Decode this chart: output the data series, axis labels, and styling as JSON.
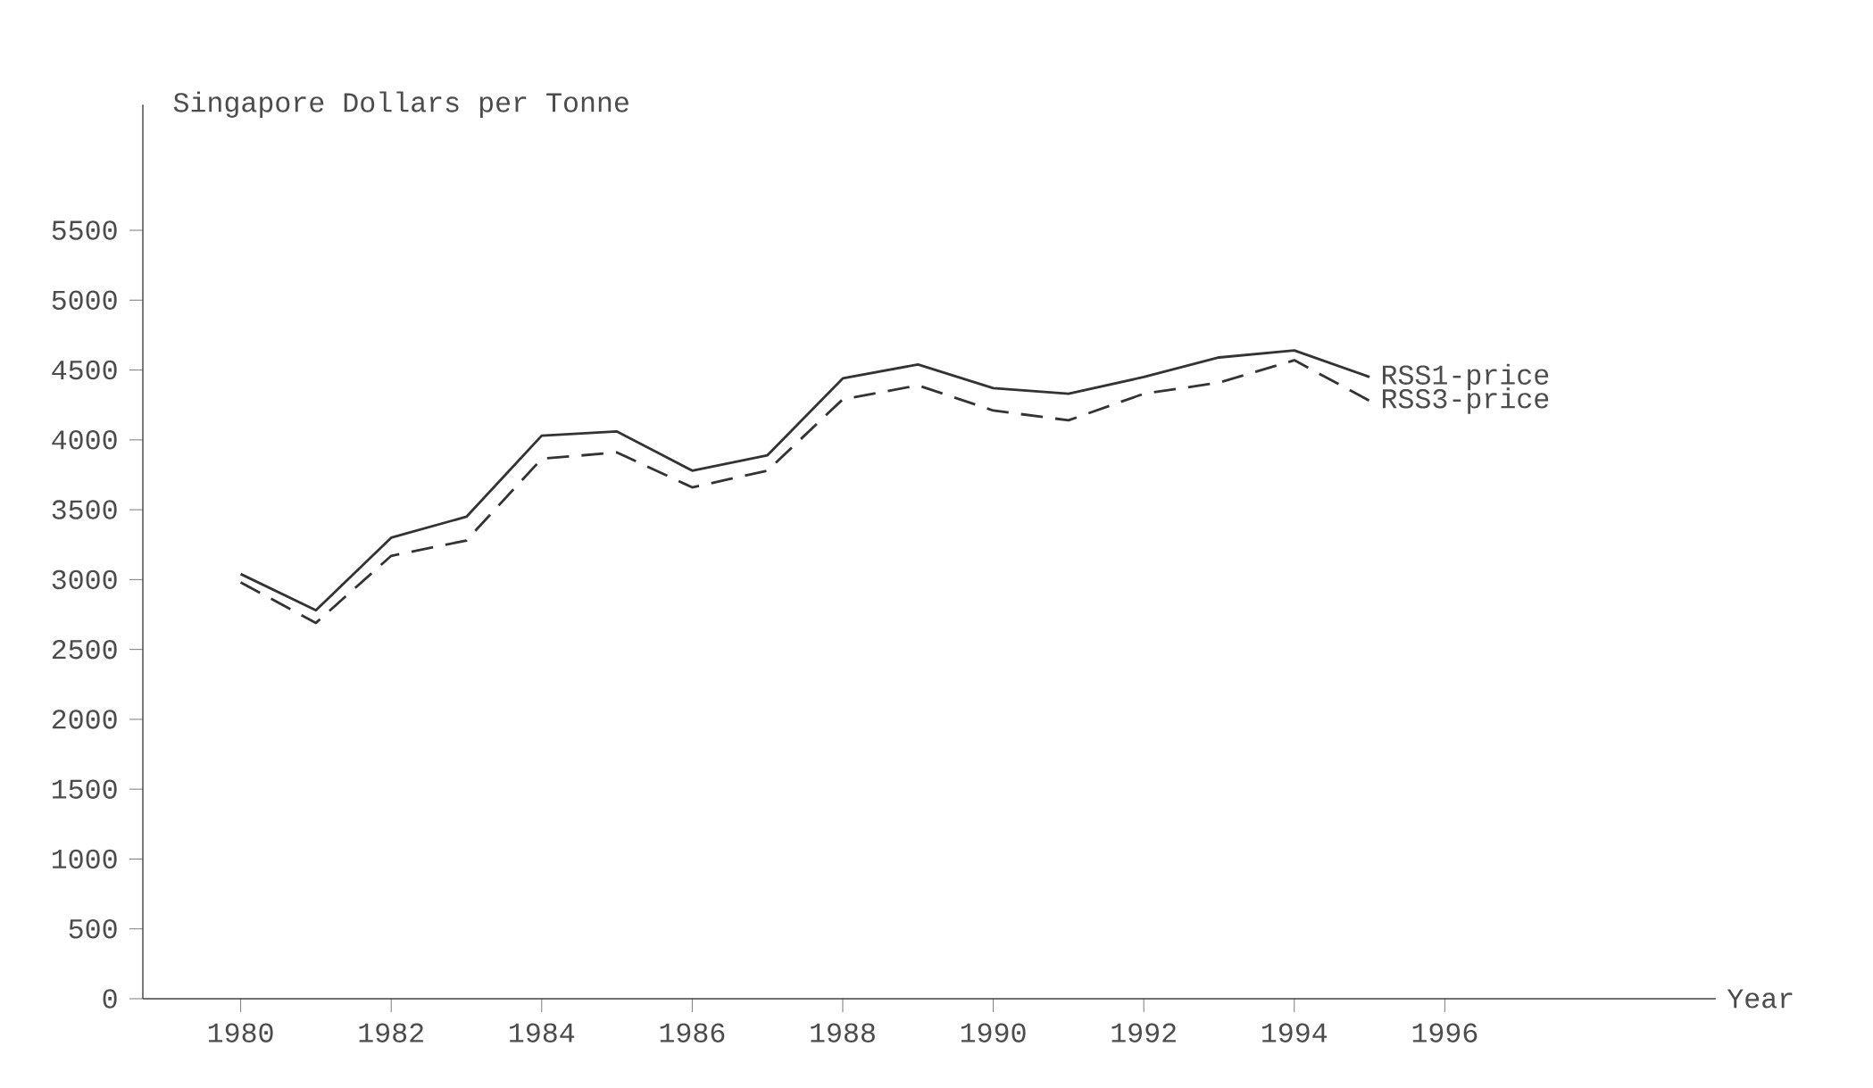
{
  "chart_data": {
    "type": "line",
    "ylabel": "Singapore Dollars per Tonne",
    "xlabel": "Year",
    "x": [
      1980,
      1981,
      1982,
      1983,
      1984,
      1985,
      1986,
      1987,
      1988,
      1989,
      1990,
      1991,
      1992,
      1993,
      1994,
      1995
    ],
    "series": [
      {
        "name": "RSS1-price",
        "color": "#333333",
        "line_style": "solid",
        "values": [
          3040,
          2780,
          3300,
          3450,
          4030,
          4060,
          3780,
          3890,
          4440,
          4540,
          4370,
          4330,
          4450,
          4590,
          4640,
          4450
        ]
      },
      {
        "name": "RSS3-price",
        "color": "#333333",
        "line_style": "dashed",
        "values": [
          2980,
          2690,
          3170,
          3280,
          3865,
          3910,
          3660,
          3780,
          4290,
          4390,
          4210,
          4140,
          4330,
          4410,
          4570,
          4280
        ]
      }
    ],
    "xlim": [
      1978.7,
      1999.6
    ],
    "ylim": [
      0,
      6400
    ],
    "xticks": [
      1980,
      1982,
      1984,
      1986,
      1988,
      1990,
      1992,
      1994,
      1996
    ],
    "yticks": [
      0,
      500,
      1000,
      1500,
      2000,
      2500,
      3000,
      3500,
      4000,
      4500,
      5000,
      5500
    ],
    "grid": false
  }
}
